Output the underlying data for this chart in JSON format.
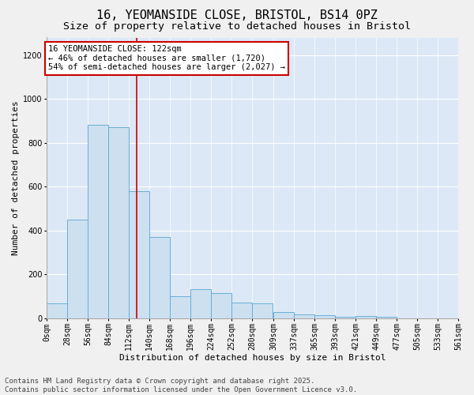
{
  "title_line1": "16, YEOMANSIDE CLOSE, BRISTOL, BS14 0PZ",
  "title_line2": "Size of property relative to detached houses in Bristol",
  "xlabel": "Distribution of detached houses by size in Bristol",
  "ylabel": "Number of detached properties",
  "bar_color": "#cce0f0",
  "bar_edge_color": "#6aaed6",
  "background_color": "#dce8f5",
  "vline_color": "#cc0000",
  "bins": [
    0,
    28,
    56,
    84,
    112,
    140,
    168,
    196,
    224,
    252,
    280,
    309,
    337,
    365,
    393,
    421,
    449,
    477,
    505,
    533,
    561
  ],
  "bin_labels": [
    "0sqm",
    "28sqm",
    "56sqm",
    "84sqm",
    "112sqm",
    "140sqm",
    "168sqm",
    "196sqm",
    "224sqm",
    "252sqm",
    "280sqm",
    "309sqm",
    "337sqm",
    "365sqm",
    "393sqm",
    "421sqm",
    "449sqm",
    "477sqm",
    "505sqm",
    "533sqm",
    "561sqm"
  ],
  "bar_heights": [
    65,
    450,
    880,
    870,
    580,
    370,
    100,
    130,
    115,
    70,
    65,
    28,
    18,
    14,
    5,
    10,
    4,
    0,
    0,
    0
  ],
  "ylim": [
    0,
    1280
  ],
  "yticks": [
    0,
    200,
    400,
    600,
    800,
    1000,
    1200
  ],
  "vline_x": 122,
  "annotation_text_line1": "16 YEOMANSIDE CLOSE: 122sqm",
  "annotation_text_line2": "← 46% of detached houses are smaller (1,720)",
  "annotation_text_line3": "54% of semi-detached houses are larger (2,027) →",
  "footer_line1": "Contains HM Land Registry data © Crown copyright and database right 2025.",
  "footer_line2": "Contains public sector information licensed under the Open Government Licence v3.0.",
  "title_fontsize": 11,
  "subtitle_fontsize": 9.5,
  "label_fontsize": 8,
  "tick_fontsize": 7,
  "annotation_fontsize": 7.5,
  "footer_fontsize": 6.5
}
